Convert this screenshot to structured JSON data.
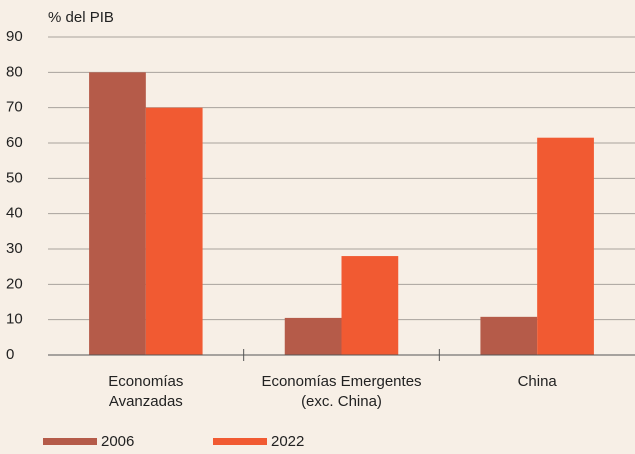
{
  "chart_data": {
    "type": "bar",
    "y_axis_label": "% del PIB",
    "categories": [
      "Economías\nAvanzadas",
      "Economías Emergentes\n(exc. China)",
      "China"
    ],
    "series": [
      {
        "name": "2006",
        "color": "#b55b49",
        "values": [
          80,
          10.5,
          10.8
        ]
      },
      {
        "name": "2022",
        "color": "#f15a32",
        "values": [
          70,
          28,
          61.5
        ]
      }
    ],
    "ylim": [
      0,
      90
    ],
    "yticks": [
      0,
      10,
      20,
      30,
      40,
      50,
      60,
      70,
      80,
      90
    ],
    "grid": true,
    "legend": "bottom"
  }
}
